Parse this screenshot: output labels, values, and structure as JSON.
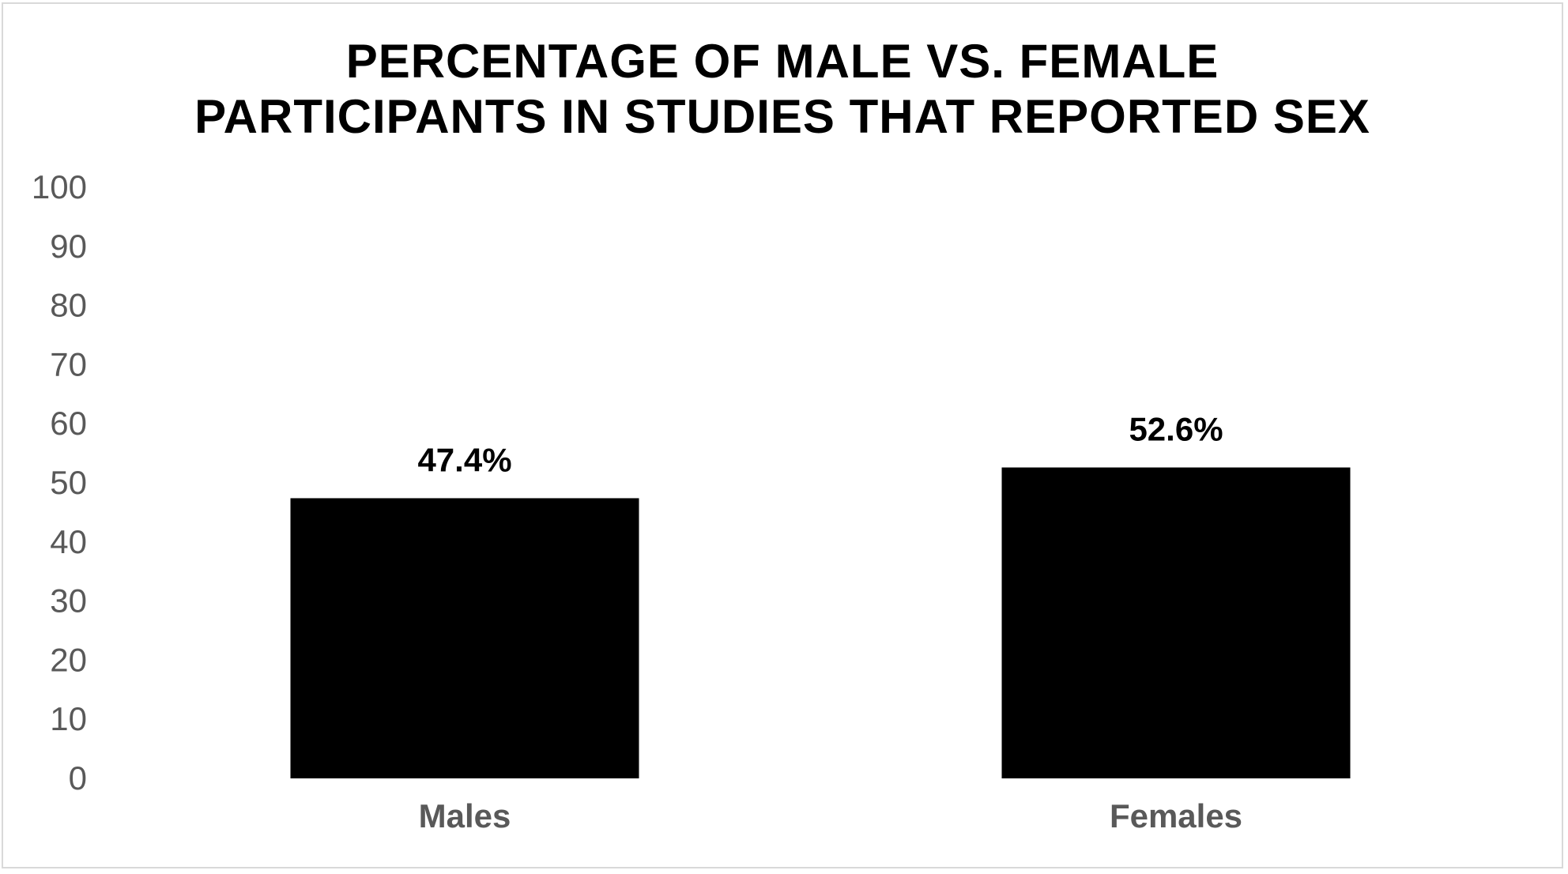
{
  "chart_data": {
    "type": "bar",
    "title_lines": [
      "PERCENTAGE OF MALE VS. FEMALE",
      "PARTICIPANTS IN STUDIES THAT REPORTED SEX"
    ],
    "categories": [
      "Males",
      "Females"
    ],
    "values": [
      47.4,
      52.6
    ],
    "data_labels": [
      "47.4%",
      "52.6%"
    ],
    "ylim": [
      0,
      100
    ],
    "yticks": [
      0,
      10,
      20,
      30,
      40,
      50,
      60,
      70,
      80,
      90,
      100
    ],
    "grid": false,
    "legend": "none",
    "bar_color": "#000000"
  }
}
